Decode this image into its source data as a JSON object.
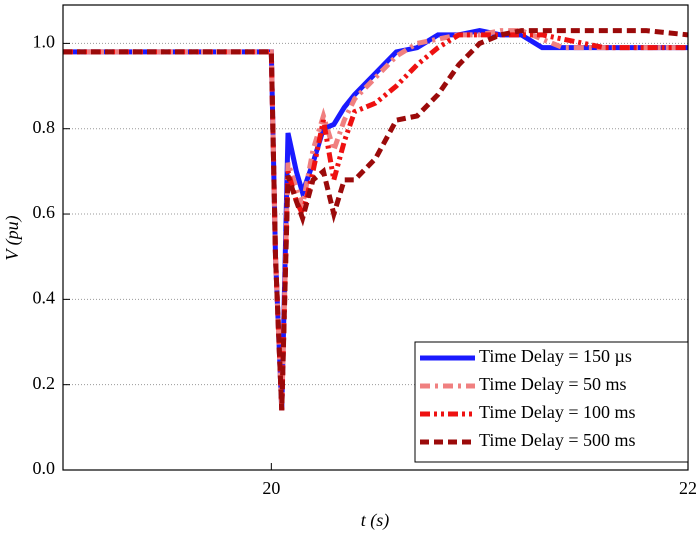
{
  "chart_data": {
    "type": "line",
    "xlabel": "t (s)",
    "ylabel": "V (pu)",
    "x": [
      19,
      20,
      20.02,
      20.05,
      20.08,
      20.12,
      20.15,
      20.2,
      20.25,
      20.3,
      20.35,
      20.4,
      20.5,
      20.6,
      20.7,
      20.8,
      20.9,
      21.0,
      21.1,
      21.2,
      21.3,
      21.4,
      21.5,
      21.6,
      21.8,
      22
    ],
    "series": [
      {
        "name": "Time Delay = 150 µs",
        "color": "#1a1aff",
        "style": "solid",
        "values": [
          0.98,
          0.98,
          0.5,
          0.14,
          0.79,
          0.7,
          0.65,
          0.72,
          0.8,
          0.81,
          0.85,
          0.88,
          0.93,
          0.98,
          0.99,
          1.02,
          1.02,
          1.03,
          1.02,
          1.02,
          0.99,
          0.99,
          0.99,
          0.99,
          0.99,
          0.99
        ]
      },
      {
        "name": "Time Delay = 50 ms",
        "color": "#f08080",
        "style": "dash-dot",
        "values": [
          0.98,
          0.98,
          0.5,
          0.14,
          0.72,
          0.66,
          0.62,
          0.75,
          0.83,
          0.75,
          0.82,
          0.87,
          0.92,
          0.97,
          1.0,
          1.01,
          1.02,
          1.02,
          1.03,
          1.03,
          1.01,
          0.99,
          0.99,
          0.99,
          0.99,
          0.99
        ]
      },
      {
        "name": "Time Delay = 100 ms",
        "color": "#ee1111",
        "style": "dash-dot-dot",
        "values": [
          0.98,
          0.98,
          0.5,
          0.14,
          0.7,
          0.63,
          0.6,
          0.7,
          0.82,
          0.68,
          0.77,
          0.84,
          0.86,
          0.9,
          0.95,
          0.99,
          1.02,
          1.02,
          1.02,
          1.02,
          1.02,
          1.01,
          1.0,
          0.99,
          0.99,
          0.99
        ]
      },
      {
        "name": "Time Delay = 500 ms",
        "color": "#9b0a0a",
        "style": "dash",
        "values": [
          0.98,
          0.98,
          0.5,
          0.14,
          0.69,
          0.63,
          0.59,
          0.68,
          0.7,
          0.6,
          0.68,
          0.68,
          0.73,
          0.82,
          0.83,
          0.88,
          0.95,
          1.0,
          1.02,
          1.03,
          1.03,
          1.03,
          1.03,
          1.03,
          1.03,
          1.02
        ]
      }
    ],
    "xlim": [
      19,
      22
    ],
    "ylim": [
      0,
      1.09
    ],
    "xticks": [
      20,
      22
    ],
    "yticks": [
      {
        "value": 0,
        "label": "0.0"
      },
      0.2,
      0.4,
      0.6,
      0.8,
      {
        "value": 1,
        "label": "1.0"
      }
    ],
    "grid": true,
    "legend": "lower right"
  }
}
